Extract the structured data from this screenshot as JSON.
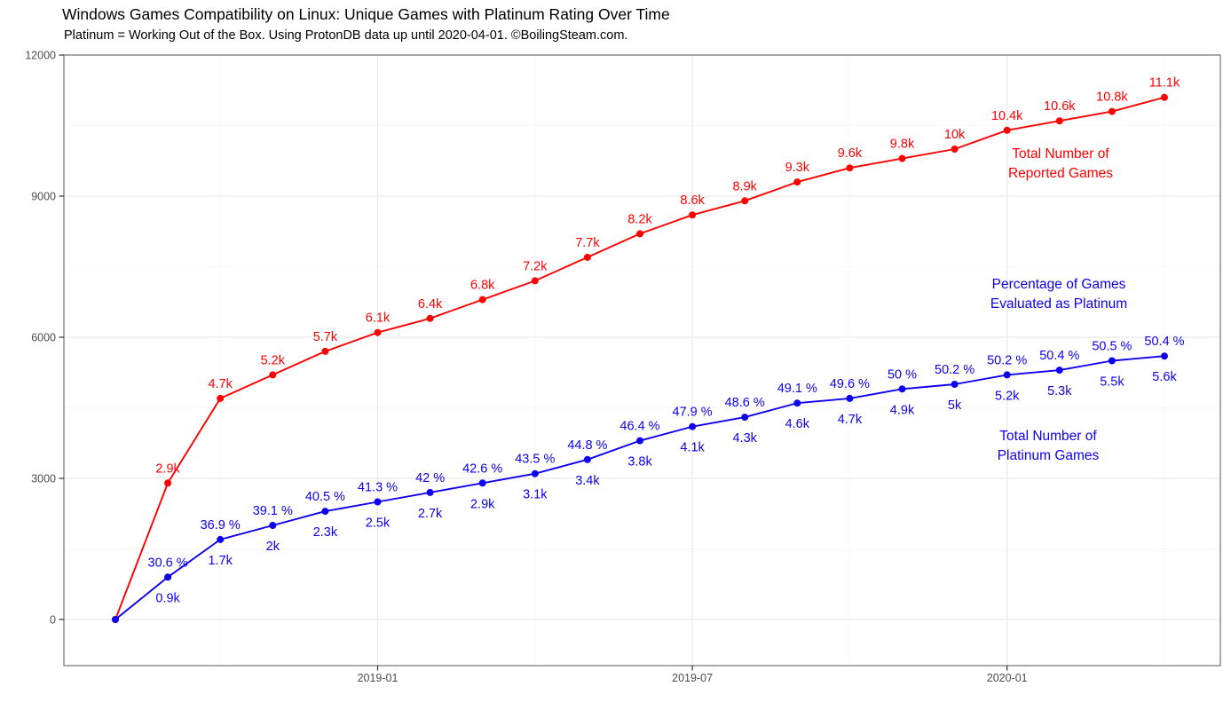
{
  "chart_data": {
    "type": "line",
    "title": "Windows Games Compatibility on Linux: Unique Games with Platinum Rating Over Time",
    "subtitle": "Platinum = Working Out of the Box. Using ProtonDB data up until 2020-04-01. ©BoilingSteam.com.",
    "x": [
      "2018-08",
      "2018-09",
      "2018-10",
      "2018-11",
      "2018-12",
      "2019-01",
      "2019-02",
      "2019-03",
      "2019-04",
      "2019-05",
      "2019-06",
      "2019-07",
      "2019-08",
      "2019-09",
      "2019-10",
      "2019-11",
      "2019-12",
      "2020-01",
      "2020-02",
      "2020-03",
      "2020-04"
    ],
    "x_axis": {
      "tick_labels": [
        "2019-01",
        "2019-07",
        "2020-01"
      ],
      "tick_month_index": [
        5,
        11,
        17
      ],
      "minor_month_index": [
        2,
        8,
        14,
        20
      ]
    },
    "y_axis": {
      "tick_labels": [
        "0",
        "3000",
        "6000",
        "9000",
        "12000"
      ],
      "ticks": [
        0,
        3000,
        6000,
        9000,
        12000
      ],
      "minor": [
        1500,
        4500,
        7500,
        10500
      ],
      "range": [
        0,
        12000
      ]
    },
    "grid": "on",
    "legend_position": "none",
    "series": [
      {
        "id": "reported",
        "name": "Total Number of Reported Games",
        "color": "#fe0000",
        "values": [
          0,
          2900,
          4700,
          5200,
          5700,
          6100,
          6400,
          6800,
          7200,
          7700,
          8200,
          8600,
          8900,
          9300,
          9600,
          9800,
          10000,
          10400,
          10600,
          10800,
          11100
        ],
        "point_labels": [
          "",
          "2.9k",
          "4.7k",
          "5.2k",
          "5.7k",
          "6.1k",
          "6.4k",
          "6.8k",
          "7.2k",
          "7.7k",
          "8.2k",
          "8.6k",
          "8.9k",
          "9.3k",
          "9.6k",
          "9.8k",
          "10k",
          "10.4k",
          "10.6k",
          "10.8k",
          "11.1k"
        ],
        "point_label_position": "above"
      },
      {
        "id": "platinum",
        "name": "Total Number of Platinum Games",
        "color": "#0d00f0",
        "values": [
          0,
          900,
          1700,
          2000,
          2300,
          2500,
          2700,
          2900,
          3100,
          3400,
          3800,
          4100,
          4300,
          4600,
          4700,
          4900,
          5000,
          5200,
          5300,
          5500,
          5600
        ],
        "point_labels": [
          "",
          "0.9k",
          "1.7k",
          "2k",
          "2.3k",
          "2.5k",
          "2.7k",
          "2.9k",
          "3.1k",
          "3.4k",
          "3.8k",
          "4.1k",
          "4.3k",
          "4.6k",
          "4.7k",
          "4.9k",
          "5k",
          "5.2k",
          "5.3k",
          "5.5k",
          "5.6k"
        ],
        "point_label_position": "below",
        "percent_values": [
          null,
          30.6,
          36.9,
          39.1,
          40.5,
          41.3,
          42,
          42.6,
          43.5,
          44.8,
          46.4,
          47.9,
          48.6,
          49.1,
          49.6,
          50,
          50.2,
          50.2,
          50.4,
          50.5,
          50.4
        ],
        "percent_labels": [
          "",
          "30.6 %",
          "36.9 %",
          "39.1 %",
          "40.5 %",
          "41.3 %",
          "42 %",
          "42.6 %",
          "43.5 %",
          "44.8 %",
          "46.4 %",
          "47.9 %",
          "48.6 %",
          "49.1 %",
          "49.6 %",
          "50 %",
          "50.2 %",
          "50.2 %",
          "50.4 %",
          "50.5 %",
          "50.4 %"
        ],
        "percent_label_position": "above"
      }
    ],
    "annotations": [
      {
        "lines": [
          "Total Number of",
          "Reported Games"
        ],
        "color": "#fe0000",
        "x": 1195,
        "y": 178,
        "line_height": 22
      },
      {
        "lines": [
          "Percentage of Games",
          "Evaluated as Platinum"
        ],
        "color": "#0d00f0",
        "x": 1193,
        "y": 325,
        "line_height": 22
      },
      {
        "lines": [
          "Total Number of",
          "Platinum Games"
        ],
        "color": "#0d00f0",
        "x": 1181,
        "y": 496,
        "line_height": 22
      }
    ],
    "colors": {
      "grid_major": "#ebebeb",
      "grid_minor": "#f6f6f6",
      "panel_border": "#858585",
      "axis_tick": "#333333",
      "tick_text": "#4d4d4d",
      "background": "#ffffff"
    }
  }
}
